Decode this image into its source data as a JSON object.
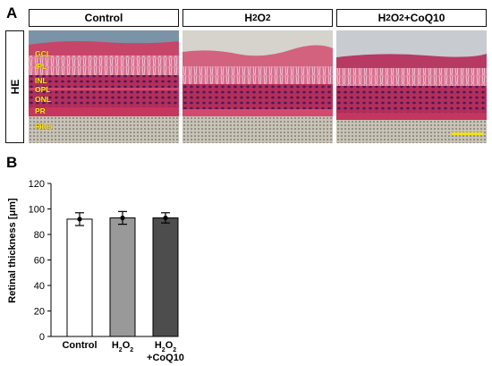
{
  "panel_a": {
    "letter": "A",
    "columns": [
      "Control",
      "H2O2",
      "H2O2+CoQ10"
    ],
    "row_label": "HE",
    "layers": [
      "GCL",
      "IPL",
      "INL",
      "OPL",
      "ONL",
      "PR",
      "Filter"
    ]
  },
  "panel_b": {
    "letter": "B"
  },
  "colors": {
    "control": "#ffffff",
    "h2o2": "#999999",
    "h2o2_coq10": "#4d4d4d",
    "label_yellow": "#f7e81a"
  },
  "chart_data": {
    "type": "bar",
    "categories": [
      "Control",
      "H2O2",
      "H2O2+CoQ10"
    ],
    "values": [
      92,
      93,
      93
    ],
    "errors": [
      5,
      5,
      4
    ],
    "ylabel": "Retinal thickness [μm]",
    "xlabel": "",
    "ylim": [
      0,
      120
    ],
    "yticks": [
      0,
      20,
      40,
      60,
      80,
      100,
      120
    ]
  }
}
